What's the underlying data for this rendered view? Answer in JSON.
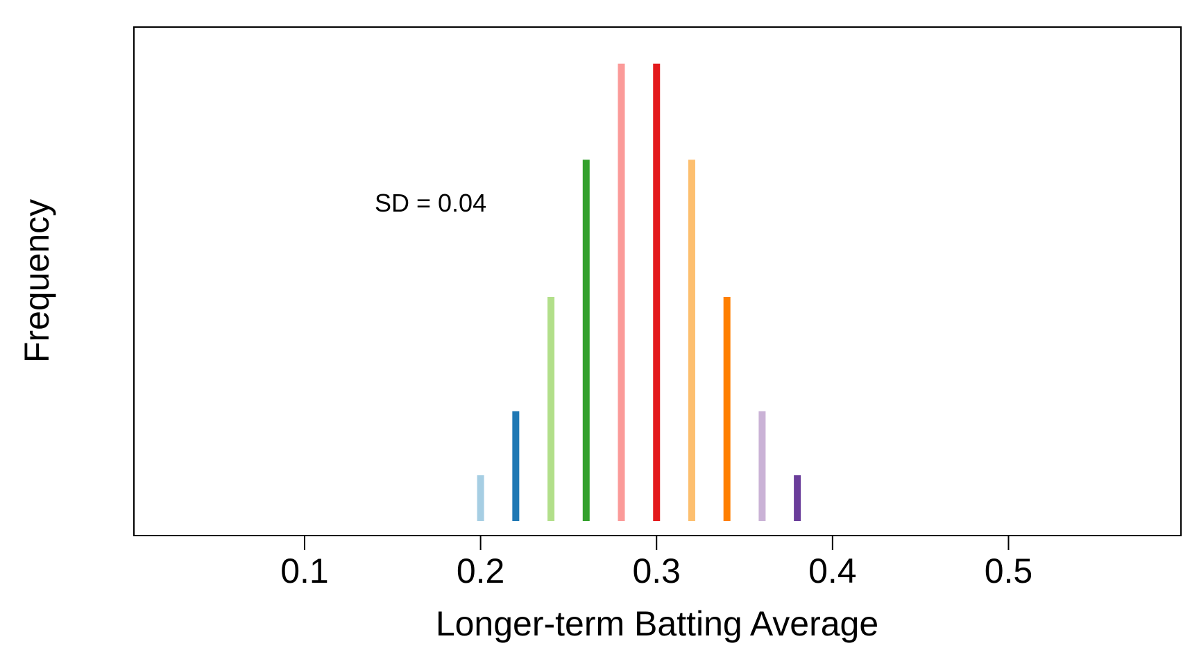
{
  "chart_data": {
    "type": "bar",
    "xlabel": "Longer-term Batting Average",
    "ylabel": "Frequency",
    "annotation": "SD = 0.04",
    "x_ticks": [
      0.1,
      0.2,
      0.3,
      0.4,
      0.5
    ],
    "x_tick_labels": [
      "0.1",
      "0.2",
      "0.3",
      "0.4",
      "0.5"
    ],
    "xlim": [
      0.003,
      0.598
    ],
    "ylim": [
      0,
      1.08
    ],
    "grid": false,
    "y_ticks_shown": false,
    "bars": [
      {
        "x": 0.2,
        "y": 0.1,
        "color": "#a6cee3"
      },
      {
        "x": 0.22,
        "y": 0.24,
        "color": "#1f78b4"
      },
      {
        "x": 0.24,
        "y": 0.49,
        "color": "#b2df8a"
      },
      {
        "x": 0.26,
        "y": 0.79,
        "color": "#33a02c"
      },
      {
        "x": 0.28,
        "y": 1.0,
        "color": "#fb9a99"
      },
      {
        "x": 0.3,
        "y": 1.0,
        "color": "#e31a1c"
      },
      {
        "x": 0.32,
        "y": 0.79,
        "color": "#fdbf6f"
      },
      {
        "x": 0.34,
        "y": 0.49,
        "color": "#ff7f00"
      },
      {
        "x": 0.36,
        "y": 0.24,
        "color": "#cab2d6"
      },
      {
        "x": 0.38,
        "y": 0.1,
        "color": "#6a3d9a"
      }
    ]
  }
}
